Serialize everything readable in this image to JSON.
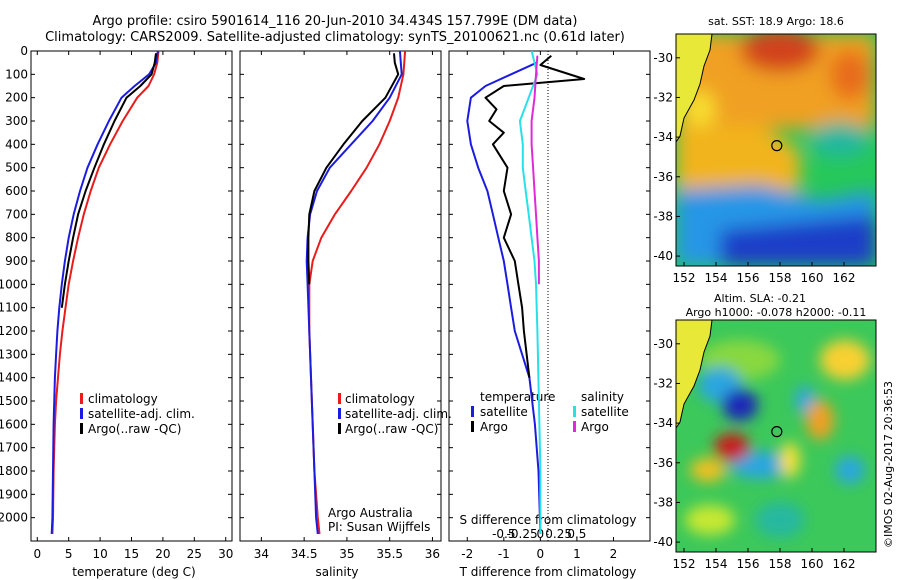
{
  "header": {
    "line1": "Argo profile: csiro 5901614_116 20-Jun-2010 34.434S 157.799E (DM data)",
    "line2": "Climatology: CARS2009. Satellite-adjusted climatology: synTS_20100621.nc (0.61d later)"
  },
  "credit": "©IMOS 02-Aug-2017 20:36:53",
  "colors": {
    "climatology": "#e81c1c",
    "satellite": "#1c1ce0",
    "argo": "#000000",
    "cyan": "#28e0e8",
    "magenta": "#e02ad8"
  },
  "chart_data": [
    {
      "type": "line",
      "name": "temperature-panel",
      "xlabel": "temperature (deg C)",
      "xlim": [
        -1,
        31
      ],
      "ylim": [
        2100,
        0
      ],
      "xticks": [
        0,
        5,
        10,
        15,
        20,
        25,
        30
      ],
      "yticks": [
        0,
        100,
        200,
        300,
        400,
        500,
        600,
        700,
        800,
        900,
        1000,
        1100,
        1200,
        1300,
        1400,
        1500,
        1600,
        1700,
        1800,
        1900,
        2000
      ],
      "legend": [
        "climatology",
        "satellite-adj. clim.",
        "Argo(..raw -QC)"
      ],
      "legend_position": "lower-left",
      "series": [
        {
          "name": "climatology",
          "color": "#e81c1c",
          "x": [
            19.3,
            19.1,
            18.6,
            17.7,
            15.9,
            13.6,
            11.6,
            9.8,
            8.5,
            7.4,
            6.5,
            5.7,
            5.0,
            4.5,
            4.0,
            3.6,
            3.3,
            3.0,
            2.8,
            2.6,
            2.5,
            2.4
          ],
          "y": [
            0,
            50,
            100,
            150,
            200,
            300,
            400,
            500,
            600,
            700,
            800,
            900,
            1000,
            1100,
            1200,
            1300,
            1400,
            1500,
            1600,
            1800,
            2000,
            2070
          ]
        },
        {
          "name": "satellite-adj. clim.",
          "color": "#1c1ce0",
          "x": [
            19.2,
            18.9,
            17.8,
            15.5,
            13.4,
            11.4,
            9.6,
            8.0,
            6.8,
            5.8,
            5.0,
            4.4,
            3.9,
            3.5,
            3.2,
            3.0,
            2.8,
            2.6,
            2.5,
            2.4,
            2.3
          ],
          "y": [
            0,
            50,
            100,
            150,
            200,
            300,
            400,
            500,
            600,
            700,
            800,
            900,
            1000,
            1100,
            1200,
            1300,
            1400,
            1600,
            1800,
            2000,
            2070
          ]
        },
        {
          "name": "Argo(..raw -QC)",
          "color": "#000000",
          "x": [
            18.9,
            18.7,
            18.2,
            16.4,
            14.2,
            12.3,
            10.6,
            9.1,
            7.7,
            6.5,
            5.7,
            5.0,
            4.4,
            3.9
          ],
          "y": [
            10,
            50,
            100,
            150,
            200,
            300,
            400,
            500,
            600,
            700,
            800,
            900,
            1000,
            1100
          ]
        }
      ]
    },
    {
      "type": "line",
      "name": "salinity-panel",
      "xlabel": "salinity",
      "xlim": [
        33.75,
        36.1
      ],
      "ylim": [
        2100,
        0
      ],
      "xticks": [
        34,
        34.5,
        35,
        35.5,
        36
      ],
      "annotation": [
        "Argo Australia",
        "PI: Susan Wijffels"
      ],
      "legend": [
        "climatology",
        "satellite-adj. clim.",
        "Argo(..raw -QC)"
      ],
      "legend_position": "lower-right",
      "series": [
        {
          "name": "climatology",
          "color": "#e81c1c",
          "x": [
            35.68,
            35.66,
            35.6,
            35.5,
            35.38,
            35.23,
            35.05,
            34.86,
            34.7,
            34.6,
            34.56,
            34.56,
            34.58,
            34.6,
            34.62,
            34.64,
            34.66,
            34.68
          ],
          "y": [
            0,
            100,
            200,
            300,
            400,
            500,
            600,
            700,
            800,
            900,
            1000,
            1200,
            1400,
            1600,
            1800,
            1900,
            2000,
            2070
          ]
        },
        {
          "name": "satellite-adj. clim.",
          "color": "#1c1ce0",
          "x": [
            35.62,
            35.64,
            35.5,
            35.3,
            35.05,
            34.8,
            34.65,
            34.57,
            34.54,
            34.53,
            34.54,
            34.56,
            34.58,
            34.6,
            34.62,
            34.64,
            34.66
          ],
          "y": [
            0,
            100,
            200,
            300,
            400,
            500,
            600,
            700,
            800,
            900,
            1000,
            1200,
            1400,
            1600,
            1800,
            2000,
            2070
          ]
        },
        {
          "name": "Argo(..raw -QC)",
          "color": "#000000",
          "x": [
            35.55,
            35.56,
            35.6,
            35.45,
            35.18,
            34.96,
            34.76,
            34.62,
            34.56,
            34.55,
            34.55,
            34.56
          ],
          "y": [
            10,
            50,
            100,
            200,
            300,
            400,
            500,
            600,
            700,
            800,
            900,
            1000
          ]
        }
      ]
    },
    {
      "type": "line",
      "name": "difference-panel",
      "xlabel": "T difference from climatology",
      "top_label": "S difference from climatology",
      "xlim": [
        -2.5,
        3
      ],
      "ylim": [
        2100,
        0
      ],
      "xticks": [
        -2,
        -1,
        0,
        1,
        2
      ],
      "xtick_labels": [
        "-2",
        "-1",
        "0",
        "1",
        "2"
      ],
      "top_ticks": [
        -0.5,
        -0.25,
        0,
        0.25,
        0.5
      ],
      "top_tick_labels": [
        "-0.5",
        "-0.25",
        "0",
        "0.25",
        "0.5"
      ],
      "legend_left": {
        "title": "temperature",
        "items": [
          "satellite",
          "Argo"
        ]
      },
      "legend_right": {
        "title": "salinity",
        "items": [
          "satellite",
          "Argo"
        ]
      },
      "series": [
        {
          "name": "temperature satellite",
          "color": "#1c1ce0",
          "x": [
            -0.1,
            -0.8,
            -1.5,
            -1.9,
            -2.0,
            -1.9,
            -1.7,
            -1.45,
            -1.3,
            -1.15,
            -1.0,
            -0.9,
            -0.8,
            -0.7,
            -0.5,
            -0.3,
            -0.15,
            -0.05,
            0.0
          ],
          "y": [
            50,
            100,
            150,
            200,
            300,
            400,
            500,
            600,
            700,
            800,
            900,
            1000,
            1100,
            1200,
            1300,
            1400,
            1600,
            1800,
            2070
          ]
        },
        {
          "name": "temperature Argo",
          "color": "#000000",
          "x": [
            0.3,
            0.0,
            1.2,
            -1.0,
            -1.5,
            -1.2,
            -1.4,
            -1.0,
            -1.3,
            -0.9,
            -1.0,
            -0.8,
            -1.0,
            -0.7,
            -0.6,
            -0.5,
            -0.45,
            -0.3
          ],
          "y": [
            20,
            60,
            120,
            150,
            200,
            250,
            300,
            350,
            400,
            500,
            600,
            700,
            800,
            900,
            1000,
            1100,
            1200,
            1400
          ]
        },
        {
          "name": "salinity satellite",
          "color": "#28e0e8",
          "x": [
            -0.06,
            -0.02,
            -0.08,
            -0.14,
            -0.12,
            -0.12,
            -0.1,
            -0.08,
            -0.06,
            -0.04,
            -0.03,
            -0.02,
            -0.01,
            0.0,
            0.0
          ],
          "y": [
            0,
            100,
            200,
            300,
            400,
            500,
            600,
            700,
            800,
            900,
            1000,
            1200,
            1500,
            1800,
            2070
          ]
        },
        {
          "name": "salinity Argo",
          "color": "#e02ad8",
          "x": [
            -0.02,
            -0.03,
            -0.04,
            -0.06,
            -0.06,
            -0.05,
            -0.04,
            -0.03,
            -0.02,
            -0.01,
            -0.01
          ],
          "y": [
            20,
            100,
            200,
            300,
            400,
            500,
            600,
            700,
            800,
            900,
            1000
          ]
        }
      ]
    },
    {
      "type": "heatmap",
      "name": "sst-map",
      "title": "sat. SST: 18.9 Argo: 18.6",
      "xlim": [
        151.5,
        164
      ],
      "ylim": [
        -40.5,
        -28.8
      ],
      "xticks": [
        152,
        154,
        156,
        158,
        160,
        162
      ],
      "yticks": [
        -30,
        -32,
        -34,
        -36,
        -38,
        -40
      ],
      "profile_marker": {
        "lon": 157.8,
        "lat": -34.43
      }
    },
    {
      "type": "heatmap",
      "name": "sla-map",
      "title": "Altim. SLA: -0.21",
      "subtitle": "Argo h1000: -0.078 h2000: -0.11",
      "xlim": [
        151.5,
        164
      ],
      "ylim": [
        -40.5,
        -28.8
      ],
      "xticks": [
        152,
        154,
        156,
        158,
        160,
        162
      ],
      "yticks": [
        -30,
        -32,
        -34,
        -36,
        -38,
        -40
      ],
      "profile_marker": {
        "lon": 157.8,
        "lat": -34.43
      }
    }
  ]
}
